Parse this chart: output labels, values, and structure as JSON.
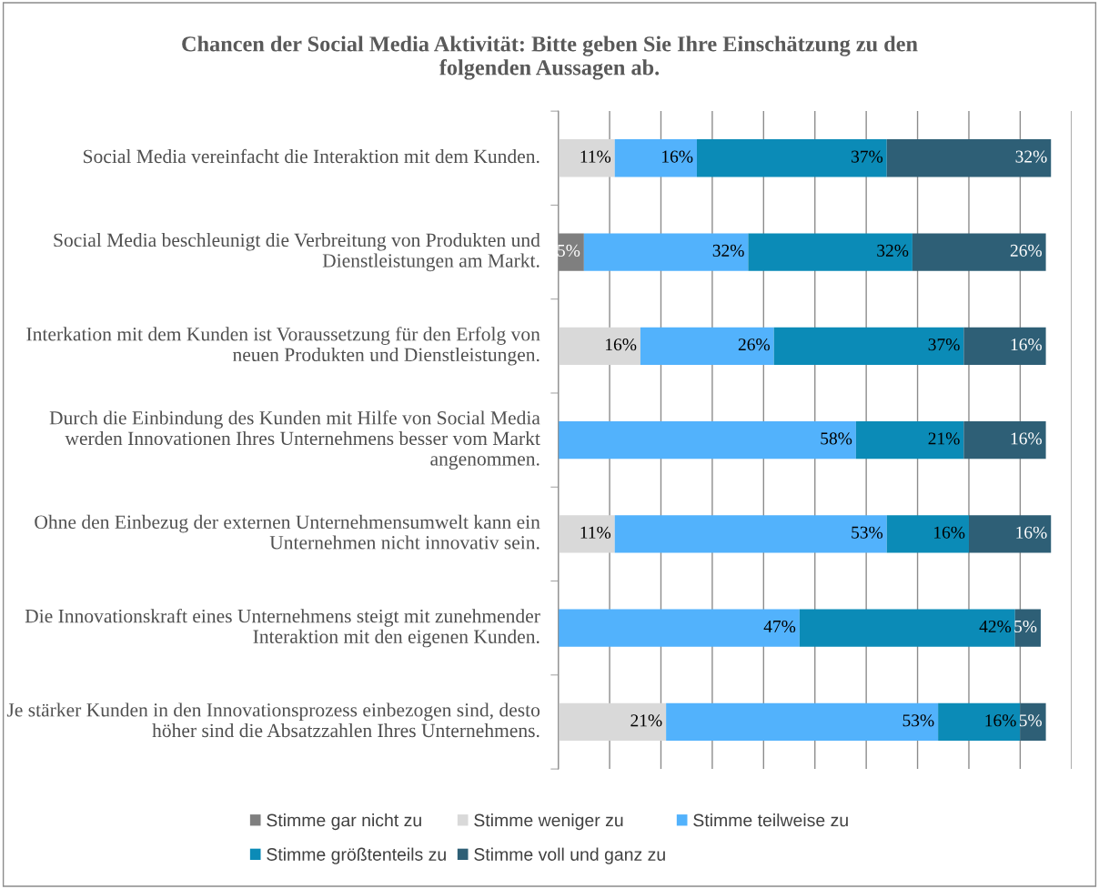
{
  "chart_data": {
    "type": "bar",
    "orientation": "horizontal",
    "stacked": true,
    "title": "Chancen der Social Media Aktivität: Bitte geben Sie Ihre Einschätzung zu den folgenden Aussagen ab.",
    "categories": [
      "Social Media vereinfacht die Interaktion mit dem Kunden.",
      "Social Media beschleunigt die Verbreitung von Produkten und Dienstleistungen am Markt.",
      "Interkation mit dem Kunden ist Voraussetzung für den Erfolg von neuen Produkten und Dienstleistungen.",
      "Durch die Einbindung des Kunden mit Hilfe von Social Media werden Innovationen Ihres Unternehmens besser vom Markt angenommen.",
      "Ohne den Einbezug der externen Unternehmensumwelt kann ein Unternehmen nicht innovativ sein.",
      "Die Innovationskraft eines Unternehmens steigt mit zunehmender Interaktion mit den eigenen Kunden.",
      "Je stärker Kunden in den Innovationsprozess einbezogen sind, desto höher sind die Absatzzahlen Ihres Unternehmens."
    ],
    "series": [
      {
        "name": "Stimme gar nicht zu",
        "color": "#7f7f7f",
        "values": [
          null,
          5,
          null,
          null,
          null,
          null,
          null
        ],
        "value_labels": [
          null,
          "5%",
          null,
          null,
          null,
          null,
          null
        ]
      },
      {
        "name": "Stimme weniger zu",
        "color": "#d9d9d9",
        "values": [
          11,
          null,
          16,
          null,
          11,
          null,
          21
        ],
        "value_labels": [
          "11%",
          null,
          "16%",
          null,
          "11%",
          null,
          "21%"
        ]
      },
      {
        "name": "Stimme teilweise zu",
        "color": "#52b2fc",
        "values": [
          16,
          32,
          26,
          58,
          53,
          47,
          53
        ],
        "value_labels": [
          "16%",
          "32%",
          "26%",
          "58%",
          "53%",
          "47%",
          "53%"
        ]
      },
      {
        "name": "Stimme größtenteils zu",
        "color": "#0b8bb7",
        "values": [
          37,
          32,
          37,
          21,
          16,
          42,
          16
        ],
        "value_labels": [
          "37%",
          "32%",
          "37%",
          "21%",
          "16%",
          "42%",
          "16%"
        ]
      },
      {
        "name": "Stimme voll und ganz zu",
        "color": "#2e5f76",
        "values": [
          32,
          26,
          16,
          16,
          16,
          5,
          5
        ],
        "value_labels": [
          "32%",
          "26%",
          "16%",
          "16%",
          "16%",
          "5%",
          "5%"
        ]
      }
    ],
    "xlim": [
      0,
      100
    ],
    "xticks": [
      {
        "value": 0,
        "label": null
      },
      {
        "value": 10,
        "label": null
      },
      {
        "value": 20,
        "label": null
      },
      {
        "value": 30,
        "label": null
      },
      {
        "value": 40,
        "label": null
      },
      {
        "value": 50,
        "label": null
      },
      {
        "value": 60,
        "label": null
      },
      {
        "value": 70,
        "label": null
      },
      {
        "value": 80,
        "label": null
      },
      {
        "value": 90,
        "label": null
      },
      {
        "value": 100,
        "label": null
      }
    ],
    "tick_labels": "y",
    "grid": "x",
    "legend": "bottom"
  }
}
